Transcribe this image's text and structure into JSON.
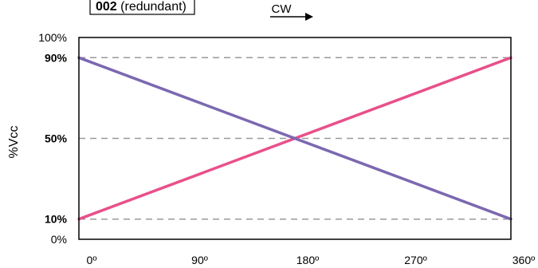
{
  "tag": {
    "bold": "002",
    "rest": "(redundant)"
  },
  "direction_label": "CW",
  "colors": {
    "series_pink": "#e8508a",
    "series_purple": "#7b68b0",
    "gridline": "#999999",
    "axis": "#000000"
  },
  "chart_data": {
    "type": "line",
    "title": "",
    "xlabel": "",
    "ylabel": "%Vcc",
    "xlim": [
      0,
      360
    ],
    "ylim": [
      0,
      100
    ],
    "x_ticks": [
      {
        "value": 0,
        "label": "0º"
      },
      {
        "value": 90,
        "label": "90º"
      },
      {
        "value": 180,
        "label": "180º"
      },
      {
        "value": 270,
        "label": "270º"
      },
      {
        "value": 360,
        "label": "360º"
      }
    ],
    "y_ticks": [
      {
        "value": 0,
        "label": "0%",
        "bold": false
      },
      {
        "value": 10,
        "label": "10%",
        "bold": true
      },
      {
        "value": 50,
        "label": "50%",
        "bold": true
      },
      {
        "value": 90,
        "label": "90%",
        "bold": true
      },
      {
        "value": 100,
        "label": "100%",
        "bold": false
      }
    ],
    "gridlines_y": [
      10,
      50,
      90
    ],
    "series": [
      {
        "color": "#e8508a",
        "x": [
          0,
          360
        ],
        "y": [
          10,
          90
        ]
      },
      {
        "color": "#7b68b0",
        "x": [
          0,
          360
        ],
        "y": [
          90,
          10
        ]
      }
    ]
  }
}
